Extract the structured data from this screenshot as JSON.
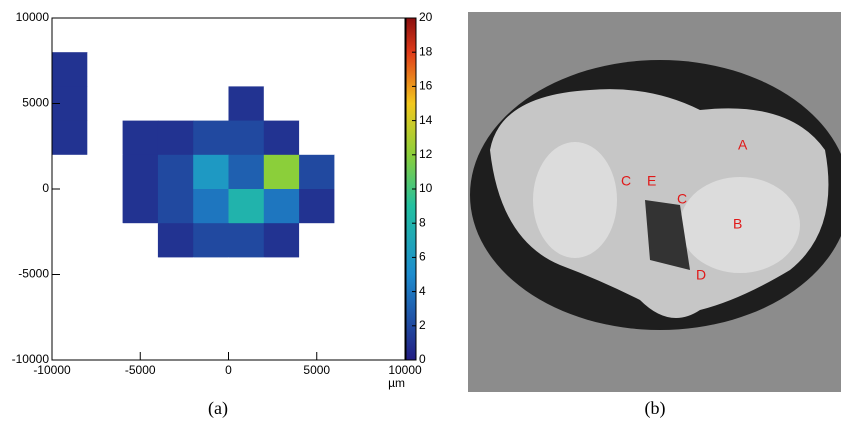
{
  "chart_data": {
    "type": "heatmap",
    "x_label": "µm",
    "xlim": [
      -10000,
      10000
    ],
    "xticks": [
      -10000,
      -5000,
      0,
      5000,
      10000
    ],
    "ylim": [
      -10000,
      10000
    ],
    "yticks": [
      -10000,
      -5000,
      0,
      5000,
      10000
    ],
    "x": [
      -9000,
      -7000,
      -5000,
      -3000,
      -1000,
      1000,
      3000,
      5000,
      7000,
      9000
    ],
    "y": [
      9000,
      7000,
      5000,
      3000,
      1000,
      -1000,
      -3000,
      -5000,
      -7000,
      -9000
    ],
    "z": [
      [
        0,
        0,
        0,
        0,
        0,
        0,
        0,
        0,
        0,
        0
      ],
      [
        1,
        0,
        0,
        0,
        0,
        0,
        0,
        0,
        0,
        0
      ],
      [
        1,
        0,
        0,
        0,
        0,
        1,
        0,
        0,
        0,
        0
      ],
      [
        1,
        0,
        1,
        1,
        2,
        2,
        1,
        0,
        0,
        0
      ],
      [
        0,
        0,
        1,
        2,
        6,
        3,
        12,
        2,
        0,
        0
      ],
      [
        0,
        0,
        1,
        2,
        4,
        8,
        4,
        1,
        0,
        0
      ],
      [
        0,
        0,
        0,
        1,
        2,
        2,
        1,
        0,
        0,
        0
      ],
      [
        0,
        0,
        0,
        0,
        0,
        0,
        0,
        0,
        0,
        0
      ],
      [
        0,
        0,
        0,
        0,
        0,
        0,
        0,
        0,
        0,
        0
      ],
      [
        0,
        0,
        0,
        0,
        0,
        0,
        0,
        0,
        0,
        0
      ]
    ],
    "zlim": [
      0,
      20
    ],
    "zticks": [
      0,
      2,
      4,
      6,
      8,
      10,
      12,
      14,
      16,
      18,
      20
    ],
    "caption": "(a)"
  },
  "photo": {
    "caption": "(b)",
    "labels": [
      "A",
      "B",
      "C",
      "E",
      "C",
      "D"
    ]
  }
}
